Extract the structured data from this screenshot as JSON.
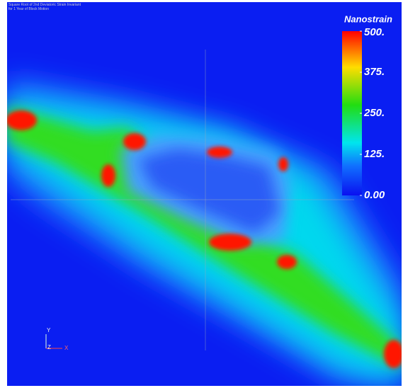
{
  "header": {
    "title_lines": [
      "Square Root of 2nd Deviatoric Strain Invariant",
      "for 1 Year of Block Motion"
    ]
  },
  "colorbar": {
    "title": "Nanostrain",
    "range": [
      0,
      500
    ],
    "ticks": [
      {
        "value": 500,
        "label": "500."
      },
      {
        "value": 375,
        "label": "375."
      },
      {
        "value": 250,
        "label": "250."
      },
      {
        "value": 125,
        "label": "125."
      },
      {
        "value": 0,
        "label": "0.00"
      }
    ]
  },
  "axes_glyph": {
    "y": "Y",
    "z": "Z",
    "x": "X"
  }
}
